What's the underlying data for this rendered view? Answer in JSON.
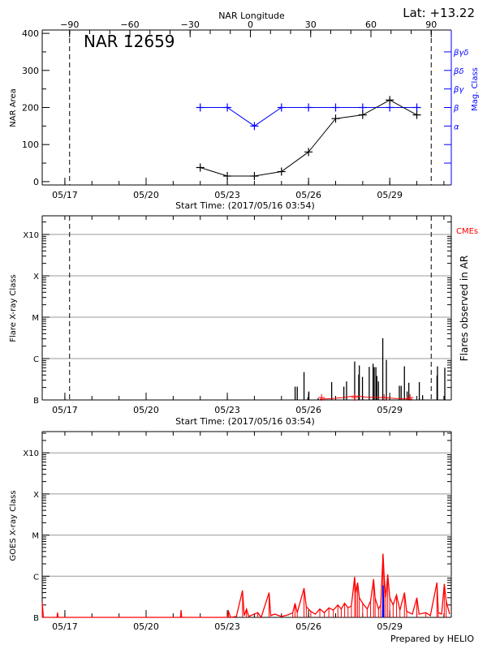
{
  "header": {
    "lat_label": "Lat: +13.22",
    "longitude_axis_title": "NAR Longitude",
    "prepared_by": "Prepared by HELIO"
  },
  "colors": {
    "area": "#000000",
    "mag": "#0000ff",
    "goes": "#ff0000",
    "goes_alt": "#0000ff",
    "cme": "#ff0000",
    "grid": "#999999"
  },
  "chart_data": [
    {
      "type": "line",
      "title": "NAR 12659",
      "xlabel": "Start Time: (2017/05/16 03:54)",
      "start_time": "2017/05/16 03:54",
      "ylabel": "NAR Area",
      "y2label": "Mag. Class",
      "ylim": [
        -9,
        409
      ],
      "yticks": [
        "0",
        "100",
        "200",
        "300",
        "400"
      ],
      "xticks": [
        "05/17",
        "05/20",
        "05/23",
        "05/26",
        "05/29"
      ],
      "limb_times": [
        "05/17 04:10",
        "05/30 12:45"
      ],
      "longitude_ticks": [
        "-90",
        "-60",
        "-30",
        "0",
        "30",
        "60",
        "90"
      ],
      "mag_classes": [
        "α",
        "β",
        "βγ",
        "βδ",
        "βγδ"
      ],
      "times": [
        "05/22 00:00",
        "05/23 00:00",
        "05/24 00:00",
        "05/25 00:00",
        "05/26 00:00",
        "05/27 00:00",
        "05/28 00:00",
        "05/29 00:00",
        "05/30 00:00"
      ],
      "series": [
        {
          "name": "NAR Area",
          "values": [
            38,
            15,
            15,
            27,
            80,
            170,
            180,
            220,
            180
          ]
        },
        {
          "name": "Mag. Class",
          "values": [
            "β",
            "β",
            "α",
            "β",
            "β",
            "β",
            "β",
            "β",
            "β"
          ]
        }
      ]
    },
    {
      "type": "bar",
      "xlabel": "Start Time: (2017/05/16 03:54)",
      "ylabel": "Flare X-ray Class",
      "y2label": "Flares observed in AR",
      "cme_label": "CMEs",
      "yscale": "log",
      "yticks": [
        "B",
        "C",
        "M",
        "X",
        "X10"
      ],
      "xticks": [
        "05/17",
        "05/20",
        "05/23",
        "05/26",
        "05/29"
      ],
      "flares": [
        [
          "05/25 12:06",
          2.1e-07
        ],
        [
          "05/25 14:00",
          2.1e-07
        ],
        [
          "05/25 20:00",
          4.7e-07
        ],
        [
          "05/25 23:24",
          1.15e-07
        ],
        [
          "05/26 00:18",
          1.6e-07
        ],
        [
          "05/26 08:30",
          1.1e-07
        ],
        [
          "05/26 20:30",
          2.7e-07
        ],
        [
          "05/27 07:18",
          2.1e-07
        ],
        [
          "05/27 09:42",
          2.8e-07
        ],
        [
          "05/27 16:54",
          8.5e-07
        ],
        [
          "05/27 20:30",
          4.1e-07
        ],
        [
          "05/27 21:00",
          6.8e-07
        ],
        [
          "05/27 23:48",
          3.6e-07
        ],
        [
          "05/28 05:48",
          6.3e-07
        ],
        [
          "05/28 09:12",
          7.5e-07
        ],
        [
          "05/28 10:12",
          6.2e-07
        ],
        [
          "05/28 11:42",
          6.2e-07
        ],
        [
          "05/28 12:36",
          3.8e-07
        ],
        [
          "05/28 14:00",
          2.8e-07
        ],
        [
          "05/28 17:48",
          3.1e-06
        ],
        [
          "05/28 21:00",
          9.3e-07
        ],
        [
          "05/29 08:30",
          2.2e-07
        ],
        [
          "05/29 10:06",
          2.2e-07
        ],
        [
          "05/29 13:00",
          6.5e-07
        ],
        [
          "05/29 15:24",
          1.6e-07
        ],
        [
          "05/29 16:54",
          2.6e-07
        ],
        [
          "05/30 02:12",
          2.7e-07
        ],
        [
          "05/30 05:06",
          1.3e-07
        ],
        [
          "05/30 17:54",
          3.9e-07
        ],
        [
          "05/30 18:18",
          6.5e-07
        ],
        [
          "05/31 00:48",
          6e-07
        ]
      ],
      "cme_curve": [
        [
          "05/26 10:00",
          0
        ],
        [
          "05/26 20:00",
          0.4
        ],
        [
          "05/27 06:00",
          1.2
        ],
        [
          "05/27 16:50",
          2.5
        ],
        [
          "05/28 03:00",
          1.6
        ],
        [
          "05/28 18:00",
          1.2
        ],
        [
          "05/29 06:00",
          0.5
        ],
        [
          "05/29 20:00",
          0
        ]
      ],
      "cme_markers": [
        "05/26 11:30",
        "05/27 16:50",
        "05/28 19:00",
        "05/29 18:00"
      ]
    },
    {
      "type": "line",
      "ylabel": "GOES X-ray Class",
      "yscale": "log",
      "yticks": [
        "B",
        "C",
        "M",
        "X",
        "X10"
      ],
      "xticks": [
        "05/17",
        "05/20",
        "05/23",
        "05/26",
        "05/29"
      ],
      "goes_alt": [
        [
          "05/28 17:40",
          1e-07
        ],
        [
          "05/28 18:00",
          6e-07
        ],
        [
          "05/28 18:20",
          2.5e-07
        ],
        [
          "05/28 18:40",
          1e-07
        ]
      ],
      "goes": [
        [
          "05/16 03:54",
          2.3e-07
        ],
        [
          "05/16 05:00",
          1e-07
        ],
        [
          "05/16 17:00",
          1e-07
        ],
        [
          "05/16 17:30",
          1.3e-07
        ],
        [
          "05/16 18:00",
          1e-07
        ],
        [
          "05/21 06:30",
          1e-07
        ],
        [
          "05/21 07:00",
          1.5e-07
        ],
        [
          "05/21 07:30",
          1e-07
        ],
        [
          "05/23 00:00",
          1e-07
        ],
        [
          "05/23 01:00",
          1.4e-07
        ],
        [
          "05/23 03:00",
          1e-07
        ],
        [
          "05/23 08:00",
          1.05e-07
        ],
        [
          "05/23 13:30",
          4.5e-07
        ],
        [
          "05/23 15:00",
          1.1e-07
        ],
        [
          "05/23 17:00",
          1.6e-07
        ],
        [
          "05/23 19:00",
          1.05e-07
        ],
        [
          "05/24 03:00",
          1.3e-07
        ],
        [
          "05/24 06:00",
          1e-07
        ],
        [
          "05/24 13:00",
          4e-07
        ],
        [
          "05/24 14:30",
          1.1e-07
        ],
        [
          "05/24 18:00",
          1.2e-07
        ],
        [
          "05/25 00:00",
          1.05e-07
        ],
        [
          "05/25 06:00",
          1.15e-07
        ],
        [
          "05/25 10:00",
          1.3e-07
        ],
        [
          "05/25 12:00",
          2.2e-07
        ],
        [
          "05/25 14:00",
          1.3e-07
        ],
        [
          "05/25 20:00",
          5.1e-07
        ],
        [
          "05/25 22:00",
          1.8e-07
        ],
        [
          "05/26 02:00",
          1.4e-07
        ],
        [
          "05/26 06:00",
          1.2e-07
        ],
        [
          "05/26 10:00",
          1.6e-07
        ],
        [
          "05/26 14:00",
          1.3e-07
        ],
        [
          "05/26 18:00",
          1.7e-07
        ],
        [
          "05/26 22:00",
          1.5e-07
        ],
        [
          "05/27 02:00",
          2e-07
        ],
        [
          "05/27 05:00",
          1.6e-07
        ],
        [
          "05/27 08:00",
          2.2e-07
        ],
        [
          "05/27 11:00",
          1.7e-07
        ],
        [
          "05/27 14:00",
          1.9e-07
        ],
        [
          "05/27 16:50",
          9.6e-07
        ],
        [
          "05/27 18:00",
          4e-07
        ],
        [
          "05/27 19:30",
          7e-07
        ],
        [
          "05/27 21:00",
          3e-07
        ],
        [
          "05/28 00:00",
          2.2e-07
        ],
        [
          "05/28 04:00",
          1.6e-07
        ],
        [
          "05/28 07:00",
          2.5e-07
        ],
        [
          "05/28 09:40",
          8.5e-07
        ],
        [
          "05/28 11:00",
          3e-07
        ],
        [
          "05/28 14:00",
          1.6e-07
        ],
        [
          "05/28 16:00",
          2e-07
        ],
        [
          "05/28 18:00",
          3.5e-06
        ],
        [
          "05/28 19:00",
          1e-06
        ],
        [
          "05/28 20:30",
          3e-07
        ],
        [
          "05/28 22:10",
          1.1e-06
        ],
        [
          "05/29 00:00",
          3e-07
        ],
        [
          "05/29 03:00",
          2e-07
        ],
        [
          "05/29 06:00",
          3.5e-07
        ],
        [
          "05/29 09:00",
          1.5e-07
        ],
        [
          "05/29 13:00",
          4e-07
        ],
        [
          "05/29 15:00",
          1.4e-07
        ],
        [
          "05/29 20:00",
          1.2e-07
        ],
        [
          "05/30 00:00",
          3e-07
        ],
        [
          "05/30 02:00",
          1.2e-07
        ],
        [
          "05/30 08:00",
          1.3e-07
        ],
        [
          "05/30 12:00",
          1.1e-07
        ],
        [
          "05/30 17:50",
          7e-07
        ],
        [
          "05/30 19:00",
          1.3e-07
        ],
        [
          "05/30 22:00",
          1.2e-07
        ],
        [
          "05/31 00:20",
          6.5e-07
        ],
        [
          "05/31 02:00",
          2.5e-07
        ],
        [
          "05/31 05:00",
          1.2e-07
        ]
      ]
    }
  ]
}
